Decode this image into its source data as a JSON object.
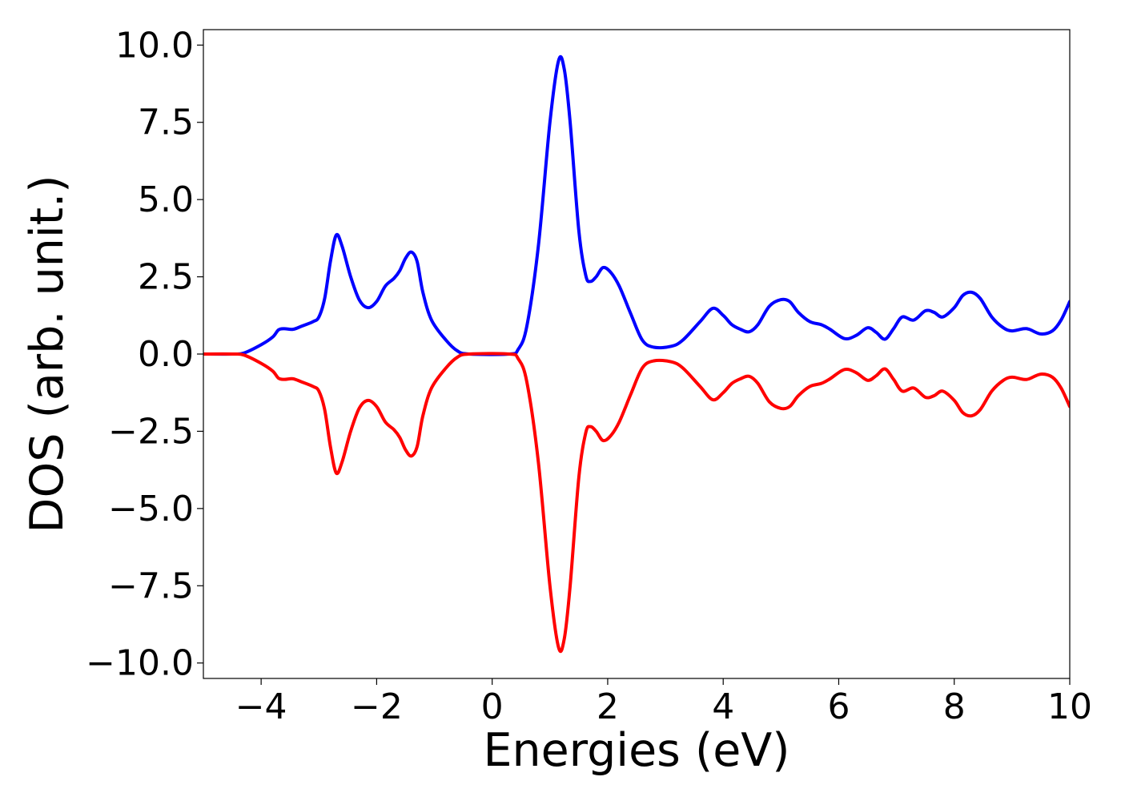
{
  "chart_data": {
    "type": "line",
    "title": "",
    "xlabel": "Energies (eV)",
    "ylabel": "DOS (arb. unit.)",
    "xlim": [
      -5,
      10
    ],
    "ylim": [
      -10.5,
      10.5
    ],
    "xticks": [
      -4,
      -2,
      0,
      2,
      4,
      6,
      8,
      10
    ],
    "xtick_labels": [
      "−4",
      "−2",
      "0",
      "2",
      "4",
      "6",
      "8",
      "10"
    ],
    "yticks": [
      10.0,
      7.5,
      5.0,
      2.5,
      0.0,
      -2.5,
      -5.0,
      -7.5,
      -10.0
    ],
    "ytick_labels": [
      "10.0",
      "7.5",
      "5.0",
      "2.5",
      "0.0",
      "−2.5",
      "−5.0",
      "−7.5",
      "−10.0"
    ],
    "grid": false,
    "legend": null,
    "series": [
      {
        "color": "#0000ff",
        "points": [
          [
            -5.0,
            0.0
          ],
          [
            -4.5,
            0.0
          ],
          [
            -4.3,
            0.03
          ],
          [
            -4.0,
            0.3
          ],
          [
            -3.8,
            0.55
          ],
          [
            -3.7,
            0.78
          ],
          [
            -3.6,
            0.82
          ],
          [
            -3.45,
            0.8
          ],
          [
            -3.3,
            0.9
          ],
          [
            -3.1,
            1.05
          ],
          [
            -3.0,
            1.2
          ],
          [
            -2.9,
            1.8
          ],
          [
            -2.8,
            3.0
          ],
          [
            -2.7,
            3.85
          ],
          [
            -2.6,
            3.5
          ],
          [
            -2.45,
            2.5
          ],
          [
            -2.3,
            1.75
          ],
          [
            -2.15,
            1.5
          ],
          [
            -2.0,
            1.7
          ],
          [
            -1.85,
            2.2
          ],
          [
            -1.7,
            2.45
          ],
          [
            -1.6,
            2.7
          ],
          [
            -1.5,
            3.1
          ],
          [
            -1.4,
            3.3
          ],
          [
            -1.3,
            3.0
          ],
          [
            -1.2,
            2.0
          ],
          [
            -1.05,
            1.1
          ],
          [
            -0.8,
            0.45
          ],
          [
            -0.6,
            0.1
          ],
          [
            -0.4,
            0.0
          ],
          [
            0.3,
            0.0
          ],
          [
            0.45,
            0.15
          ],
          [
            0.6,
            0.9
          ],
          [
            0.8,
            3.5
          ],
          [
            1.0,
            7.5
          ],
          [
            1.15,
            9.5
          ],
          [
            1.25,
            9.2
          ],
          [
            1.35,
            7.5
          ],
          [
            1.5,
            4.0
          ],
          [
            1.62,
            2.55
          ],
          [
            1.7,
            2.35
          ],
          [
            1.8,
            2.5
          ],
          [
            1.92,
            2.8
          ],
          [
            2.05,
            2.65
          ],
          [
            2.2,
            2.2
          ],
          [
            2.4,
            1.3
          ],
          [
            2.6,
            0.45
          ],
          [
            2.8,
            0.22
          ],
          [
            3.1,
            0.25
          ],
          [
            3.3,
            0.45
          ],
          [
            3.6,
            1.05
          ],
          [
            3.82,
            1.48
          ],
          [
            4.0,
            1.25
          ],
          [
            4.15,
            0.95
          ],
          [
            4.3,
            0.8
          ],
          [
            4.45,
            0.72
          ],
          [
            4.6,
            0.95
          ],
          [
            4.8,
            1.55
          ],
          [
            5.0,
            1.76
          ],
          [
            5.15,
            1.7
          ],
          [
            5.3,
            1.35
          ],
          [
            5.5,
            1.05
          ],
          [
            5.7,
            0.95
          ],
          [
            5.85,
            0.8
          ],
          [
            6.1,
            0.5
          ],
          [
            6.3,
            0.6
          ],
          [
            6.5,
            0.85
          ],
          [
            6.65,
            0.7
          ],
          [
            6.8,
            0.48
          ],
          [
            6.95,
            0.82
          ],
          [
            7.1,
            1.2
          ],
          [
            7.3,
            1.1
          ],
          [
            7.5,
            1.4
          ],
          [
            7.65,
            1.35
          ],
          [
            7.8,
            1.2
          ],
          [
            8.0,
            1.5
          ],
          [
            8.15,
            1.9
          ],
          [
            8.3,
            2.0
          ],
          [
            8.45,
            1.8
          ],
          [
            8.65,
            1.2
          ],
          [
            8.85,
            0.85
          ],
          [
            9.0,
            0.75
          ],
          [
            9.2,
            0.82
          ],
          [
            9.3,
            0.8
          ],
          [
            9.5,
            0.65
          ],
          [
            9.7,
            0.75
          ],
          [
            9.85,
            1.1
          ],
          [
            10.0,
            1.7
          ]
        ]
      },
      {
        "color": "#ff0000",
        "points": [
          [
            -5.0,
            0.0
          ],
          [
            -4.5,
            0.0
          ],
          [
            -4.3,
            -0.03
          ],
          [
            -4.0,
            -0.3
          ],
          [
            -3.8,
            -0.55
          ],
          [
            -3.7,
            -0.78
          ],
          [
            -3.6,
            -0.82
          ],
          [
            -3.45,
            -0.8
          ],
          [
            -3.3,
            -0.9
          ],
          [
            -3.1,
            -1.05
          ],
          [
            -3.0,
            -1.2
          ],
          [
            -2.9,
            -1.8
          ],
          [
            -2.8,
            -3.0
          ],
          [
            -2.7,
            -3.85
          ],
          [
            -2.6,
            -3.5
          ],
          [
            -2.45,
            -2.5
          ],
          [
            -2.3,
            -1.75
          ],
          [
            -2.15,
            -1.5
          ],
          [
            -2.0,
            -1.7
          ],
          [
            -1.85,
            -2.2
          ],
          [
            -1.7,
            -2.45
          ],
          [
            -1.6,
            -2.7
          ],
          [
            -1.5,
            -3.1
          ],
          [
            -1.4,
            -3.3
          ],
          [
            -1.3,
            -3.0
          ],
          [
            -1.2,
            -2.0
          ],
          [
            -1.05,
            -1.1
          ],
          [
            -0.8,
            -0.45
          ],
          [
            -0.6,
            -0.1
          ],
          [
            -0.4,
            0.0
          ],
          [
            0.3,
            0.0
          ],
          [
            0.45,
            -0.15
          ],
          [
            0.6,
            -0.9
          ],
          [
            0.8,
            -3.5
          ],
          [
            1.0,
            -7.5
          ],
          [
            1.15,
            -9.5
          ],
          [
            1.25,
            -9.2
          ],
          [
            1.35,
            -7.5
          ],
          [
            1.5,
            -4.0
          ],
          [
            1.62,
            -2.55
          ],
          [
            1.7,
            -2.35
          ],
          [
            1.8,
            -2.5
          ],
          [
            1.92,
            -2.8
          ],
          [
            2.05,
            -2.65
          ],
          [
            2.2,
            -2.2
          ],
          [
            2.4,
            -1.3
          ],
          [
            2.6,
            -0.45
          ],
          [
            2.8,
            -0.22
          ],
          [
            3.1,
            -0.25
          ],
          [
            3.3,
            -0.45
          ],
          [
            3.6,
            -1.05
          ],
          [
            3.82,
            -1.48
          ],
          [
            4.0,
            -1.25
          ],
          [
            4.15,
            -0.95
          ],
          [
            4.3,
            -0.8
          ],
          [
            4.45,
            -0.72
          ],
          [
            4.6,
            -0.95
          ],
          [
            4.8,
            -1.55
          ],
          [
            5.0,
            -1.76
          ],
          [
            5.15,
            -1.7
          ],
          [
            5.3,
            -1.35
          ],
          [
            5.5,
            -1.05
          ],
          [
            5.7,
            -0.95
          ],
          [
            5.85,
            -0.8
          ],
          [
            6.1,
            -0.5
          ],
          [
            6.3,
            -0.6
          ],
          [
            6.5,
            -0.85
          ],
          [
            6.65,
            -0.7
          ],
          [
            6.8,
            -0.48
          ],
          [
            6.95,
            -0.82
          ],
          [
            7.1,
            -1.2
          ],
          [
            7.3,
            -1.1
          ],
          [
            7.5,
            -1.4
          ],
          [
            7.65,
            -1.35
          ],
          [
            7.8,
            -1.2
          ],
          [
            8.0,
            -1.5
          ],
          [
            8.15,
            -1.9
          ],
          [
            8.3,
            -2.0
          ],
          [
            8.45,
            -1.8
          ],
          [
            8.65,
            -1.2
          ],
          [
            8.85,
            -0.85
          ],
          [
            9.0,
            -0.75
          ],
          [
            9.2,
            -0.82
          ],
          [
            9.3,
            -0.8
          ],
          [
            9.5,
            -0.65
          ],
          [
            9.7,
            -0.75
          ],
          [
            9.85,
            -1.1
          ],
          [
            10.0,
            -1.7
          ]
        ]
      }
    ]
  }
}
